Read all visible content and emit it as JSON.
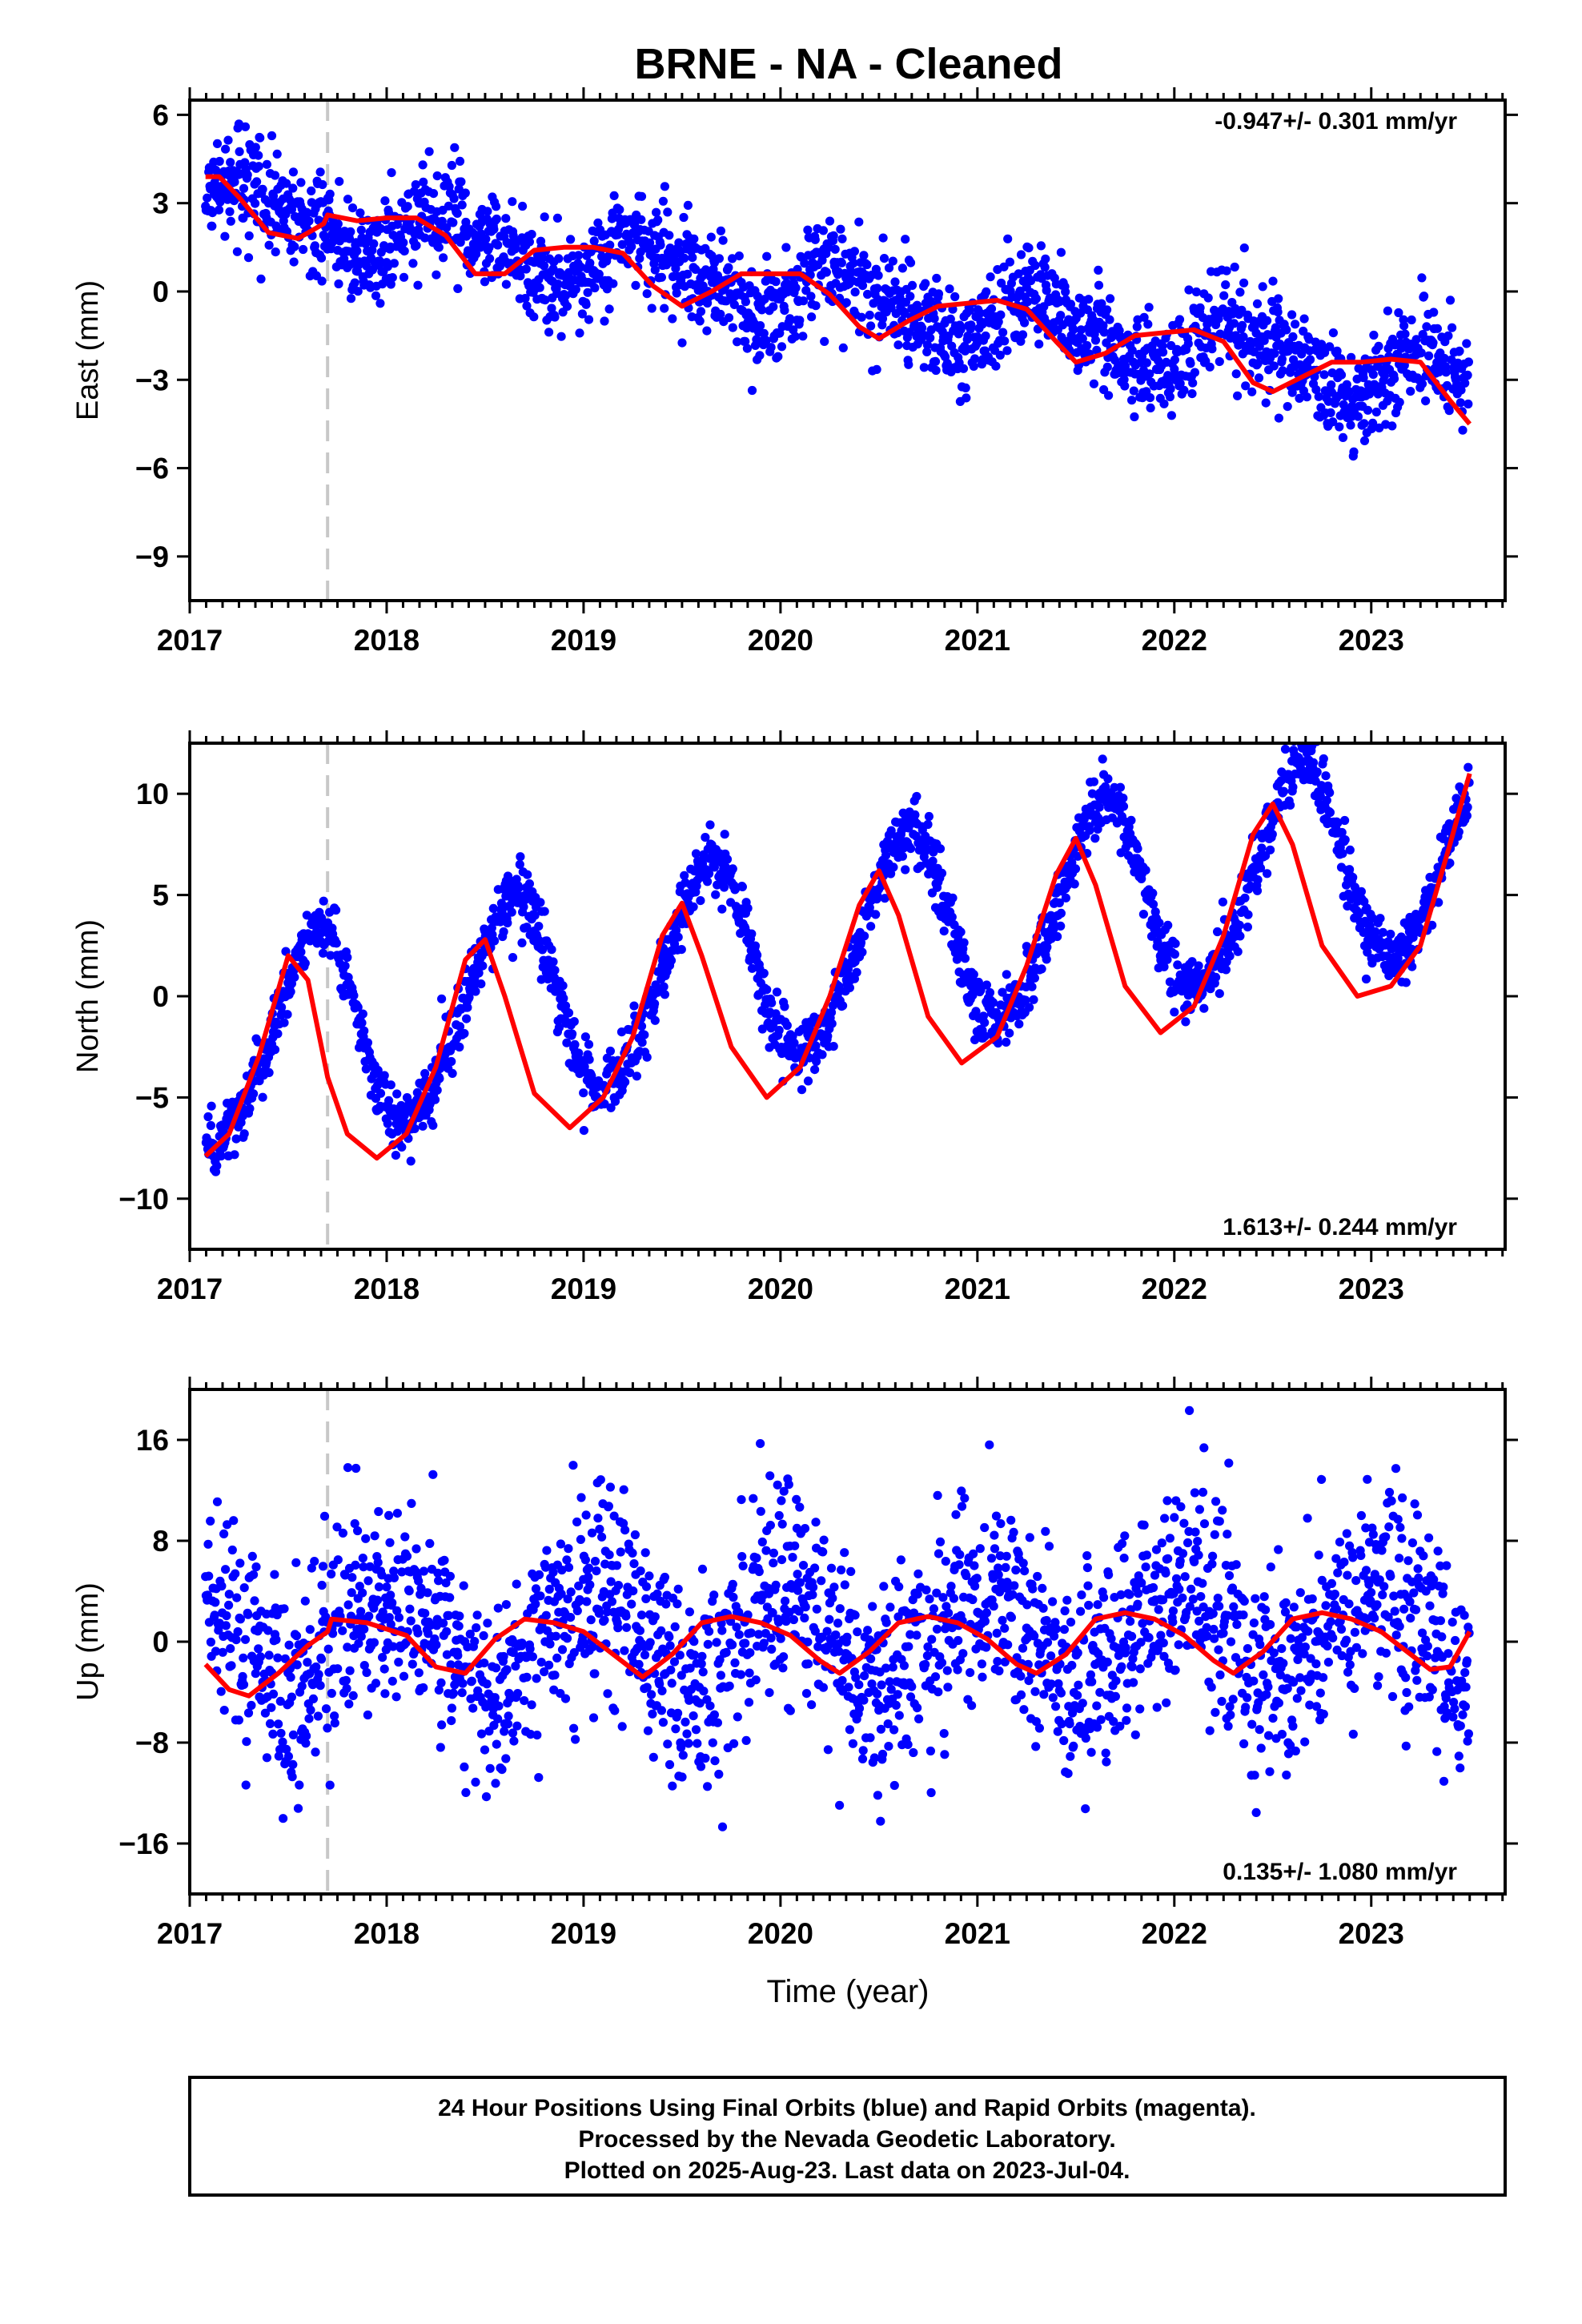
{
  "title": "BRNE  - NA - Cleaned",
  "colors": {
    "final_orbits": "#0000ff",
    "model": "#ff0000",
    "marker_line": "#c8c8c8",
    "frame": "#000000"
  },
  "chart_data": [
    {
      "type": "scatter",
      "component": "east",
      "ylabel": "East (mm)",
      "rate_text": "-0.947+/- 0.301 mm/yr",
      "rate_position": "top-right",
      "xlim": [
        2017.0,
        2023.68
      ],
      "ylim": [
        -10.5,
        6.5
      ],
      "yticks": [
        6,
        3,
        0,
        -3,
        -6,
        -9
      ],
      "xticks": [
        2017,
        2018,
        2019,
        2020,
        2021,
        2022,
        2023
      ],
      "xtick_labels": [
        "2017",
        "2018",
        "2019",
        "2020",
        "2021",
        "2022",
        "2023"
      ],
      "x_start": 2017.08,
      "x_end": 2023.5,
      "equipment_change": 2017.7,
      "trend": {
        "offset": 2.9,
        "rate": -0.947,
        "ann_amp": 0.9,
        "ann_phase": 0.0,
        "semi_amp": 0.3,
        "noise": 1.0
      },
      "model_line": {
        "x": [
          2017.08,
          2017.15,
          2017.25,
          2017.4,
          2017.55,
          2017.68,
          2017.7,
          2017.85,
          2018.0,
          2018.15,
          2018.3,
          2018.45,
          2018.6,
          2018.75,
          2018.9,
          2019.05,
          2019.2,
          2019.35,
          2019.5,
          2019.65,
          2019.8,
          2019.95,
          2020.1,
          2020.25,
          2020.4,
          2020.5,
          2020.65,
          2020.8,
          2020.95,
          2021.1,
          2021.25,
          2021.4,
          2021.5,
          2021.65,
          2021.8,
          2021.95,
          2022.1,
          2022.25,
          2022.4,
          2022.5,
          2022.65,
          2022.8,
          2022.95,
          2023.1,
          2023.25,
          2023.4,
          2023.5
        ],
        "y": [
          3.9,
          3.9,
          3.2,
          2.0,
          1.8,
          2.3,
          2.6,
          2.4,
          2.5,
          2.5,
          1.9,
          0.6,
          0.6,
          1.4,
          1.5,
          1.5,
          1.3,
          0.2,
          -0.5,
          0.0,
          0.6,
          0.6,
          0.6,
          -0.1,
          -1.2,
          -1.6,
          -1.0,
          -0.5,
          -0.4,
          -0.3,
          -0.6,
          -1.7,
          -2.4,
          -2.1,
          -1.5,
          -1.4,
          -1.3,
          -1.7,
          -3.1,
          -3.4,
          -2.9,
          -2.4,
          -2.4,
          -2.3,
          -2.4,
          -3.7,
          -4.5
        ]
      }
    },
    {
      "type": "scatter",
      "component": "north",
      "ylabel": "North (mm)",
      "rate_text": "1.613+/- 0.244 mm/yr",
      "rate_position": "bottom-right",
      "xlim": [
        2017.0,
        2023.68
      ],
      "ylim": [
        -12.5,
        12.5
      ],
      "yticks": [
        10,
        5,
        0,
        -5,
        -10
      ],
      "xticks": [
        2017,
        2018,
        2019,
        2020,
        2021,
        2022,
        2023
      ],
      "xtick_labels": [
        "2017",
        "2018",
        "2019",
        "2020",
        "2021",
        "2022",
        "2023"
      ],
      "x_start": 2017.08,
      "x_end": 2023.5,
      "equipment_change": 2017.7,
      "trend": {
        "offset": -2.9,
        "rate": 1.613,
        "ann_amp": 5.0,
        "ann_phase": 0.3,
        "semi_amp": 0.5,
        "noise": 0.9
      },
      "model_line": {
        "x": [
          2017.08,
          2017.2,
          2017.35,
          2017.5,
          2017.6,
          2017.7,
          2017.8,
          2017.95,
          2018.1,
          2018.25,
          2018.4,
          2018.5,
          2018.6,
          2018.75,
          2018.93,
          2019.1,
          2019.25,
          2019.4,
          2019.5,
          2019.6,
          2019.75,
          2019.93,
          2020.1,
          2020.25,
          2020.4,
          2020.5,
          2020.6,
          2020.75,
          2020.92,
          2021.1,
          2021.25,
          2021.4,
          2021.5,
          2021.6,
          2021.75,
          2021.93,
          2022.1,
          2022.25,
          2022.4,
          2022.5,
          2022.6,
          2022.75,
          2022.93,
          2023.1,
          2023.25,
          2023.4,
          2023.5
        ],
        "y": [
          -7.9,
          -6.8,
          -3.0,
          2.0,
          0.8,
          -4.0,
          -6.8,
          -8.0,
          -6.8,
          -3.5,
          1.8,
          2.8,
          0.0,
          -4.8,
          -6.5,
          -5.0,
          -2.0,
          3.0,
          4.6,
          2.0,
          -2.5,
          -5.0,
          -3.5,
          0.0,
          4.5,
          6.2,
          4.0,
          -1.0,
          -3.3,
          -2.0,
          1.5,
          6.0,
          7.8,
          5.5,
          0.5,
          -1.8,
          -0.5,
          3.0,
          8.0,
          9.5,
          7.5,
          2.5,
          0.0,
          0.5,
          2.5,
          7.5,
          11.0
        ]
      }
    },
    {
      "type": "scatter",
      "component": "up",
      "ylabel": "Up (mm)",
      "xlabel": "Time (year)",
      "rate_text": "0.135+/- 1.080 mm/yr",
      "rate_position": "bottom-right",
      "xlim": [
        2017.0,
        2023.68
      ],
      "ylim": [
        -20.0,
        20.0
      ],
      "yticks": [
        16,
        8,
        0,
        -8,
        -16
      ],
      "xticks": [
        2017,
        2018,
        2019,
        2020,
        2021,
        2022,
        2023
      ],
      "xtick_labels": [
        "2017",
        "2018",
        "2019",
        "2020",
        "2021",
        "2022",
        "2023"
      ],
      "x_start": 2017.08,
      "x_end": 2023.5,
      "equipment_change": 2017.7,
      "trend": {
        "offset": 0.0,
        "rate": 0.135,
        "ann_amp": 3.5,
        "ann_phase": 0.7,
        "semi_amp": 0.5,
        "noise": 5.0
      },
      "model_line": {
        "x": [
          2017.08,
          2017.2,
          2017.3,
          2017.45,
          2017.6,
          2017.7,
          2017.72,
          2017.9,
          2018.1,
          2018.25,
          2018.4,
          2018.55,
          2018.7,
          2018.85,
          2019.0,
          2019.15,
          2019.3,
          2019.45,
          2019.6,
          2019.75,
          2019.9,
          2020.05,
          2020.2,
          2020.3,
          2020.45,
          2020.6,
          2020.75,
          2020.9,
          2021.05,
          2021.2,
          2021.3,
          2021.45,
          2021.6,
          2021.75,
          2021.9,
          2022.05,
          2022.2,
          2022.3,
          2022.45,
          2022.6,
          2022.75,
          2022.9,
          2023.05,
          2023.2,
          2023.3,
          2023.4,
          2023.5
        ],
        "y": [
          -1.8,
          -3.8,
          -4.3,
          -2.5,
          -0.3,
          0.8,
          1.8,
          1.5,
          0.5,
          -2.0,
          -2.5,
          0.2,
          1.8,
          1.5,
          0.8,
          -1.0,
          -2.8,
          -1.0,
          1.5,
          2.0,
          1.5,
          0.5,
          -1.5,
          -2.5,
          -0.8,
          1.5,
          2.0,
          1.5,
          0.2,
          -1.8,
          -2.5,
          -1.0,
          1.8,
          2.3,
          1.8,
          0.5,
          -1.5,
          -2.5,
          -0.8,
          1.8,
          2.3,
          1.8,
          0.8,
          -1.0,
          -2.2,
          -2.0,
          0.8
        ]
      }
    }
  ],
  "caption": {
    "line1": "24 Hour Positions Using Final Orbits (blue) and Rapid Orbits (magenta).",
    "line2": "Processed by the Nevada Geodetic Laboratory.",
    "line3": "Plotted on 2025-Aug-23. Last data on 2023-Jul-04."
  }
}
